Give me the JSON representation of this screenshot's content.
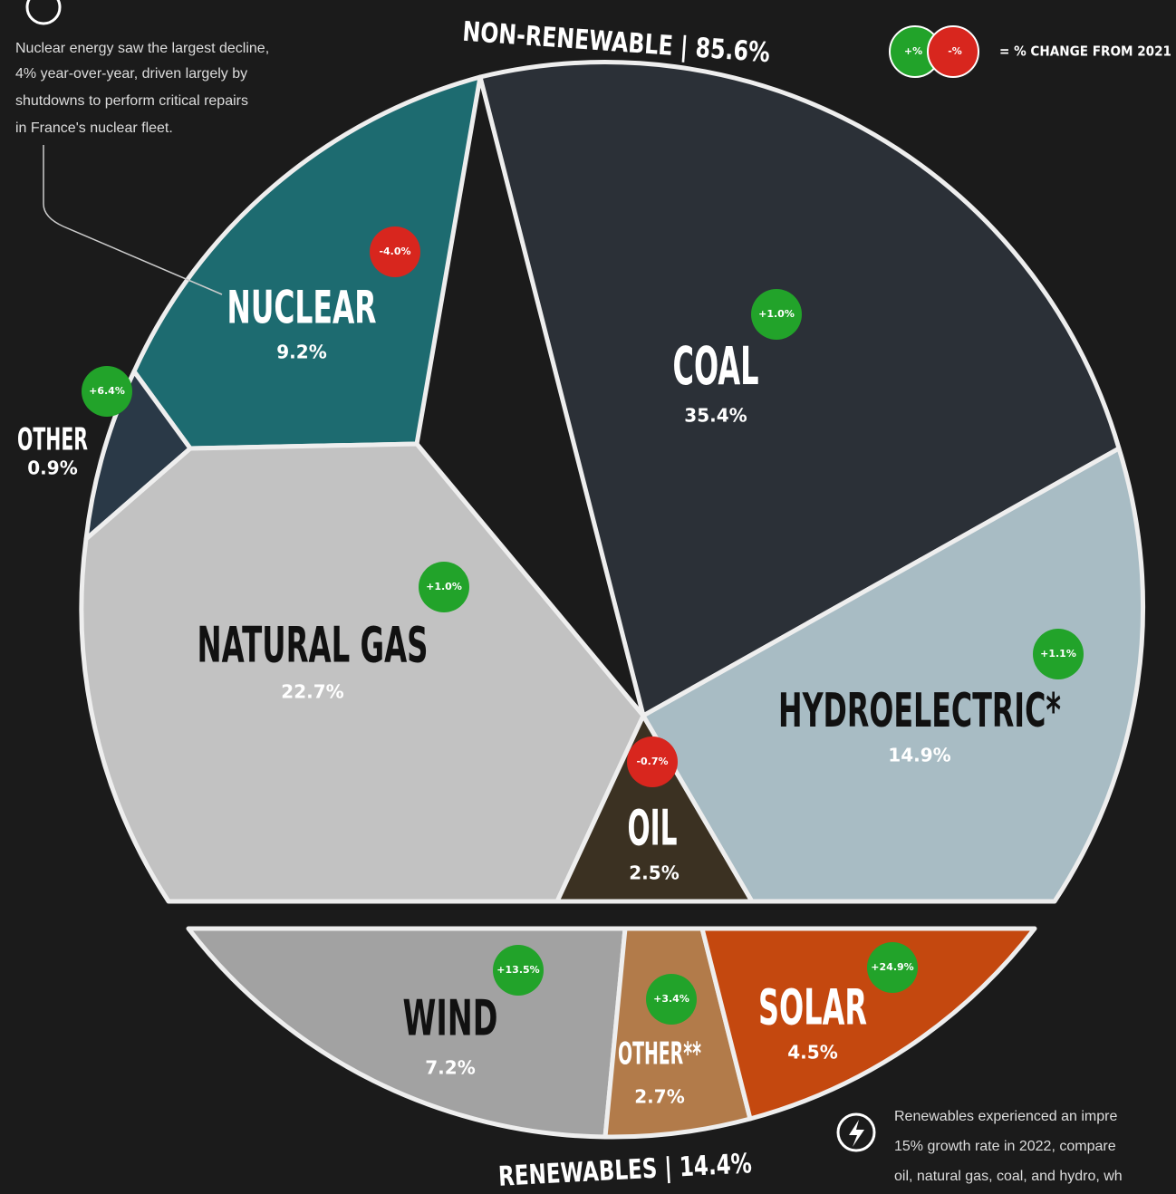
{
  "header": {
    "non_renewable": "NON-RENEWABLE | 85.6%",
    "renewables": "RENEWABLES | 14.4%"
  },
  "legend": {
    "positive": "+%",
    "negative": "-%",
    "label": "= % CHANGE FROM 2021"
  },
  "notes": {
    "nuclear": [
      "Nuclear energy saw the largest decline,",
      "4% year-over-year, driven largely by",
      "shutdowns to perform critical repairs",
      "in France's nuclear fleet."
    ],
    "renewables": [
      "Renewables experienced an impre",
      "15% growth rate in 2022, compare",
      "oil, natural gas, coal, and hydro, wh"
    ]
  },
  "segments": [
    {
      "name": "NUCLEAR",
      "share": "9.2%",
      "change": "-4.0%"
    },
    {
      "name": "COAL",
      "share": "35.4%",
      "change": "+1.0%"
    },
    {
      "name": "OTHER",
      "share": "0.9%",
      "change": "+6.4%"
    },
    {
      "name": "NATURAL GAS",
      "share": "22.7%",
      "change": "+1.0%"
    },
    {
      "name": "OIL",
      "share": "2.5%",
      "change": "-0.7%"
    },
    {
      "name": "HYDROELECTRIC*",
      "share": "14.9%",
      "change": "+1.1%"
    },
    {
      "name": "WIND",
      "share": "7.2%",
      "change": "+13.5%"
    },
    {
      "name": "OTHER**",
      "share": "2.7%",
      "change": "+3.4%"
    },
    {
      "name": "SOLAR",
      "share": "4.5%",
      "change": "+24.9%"
    }
  ]
}
